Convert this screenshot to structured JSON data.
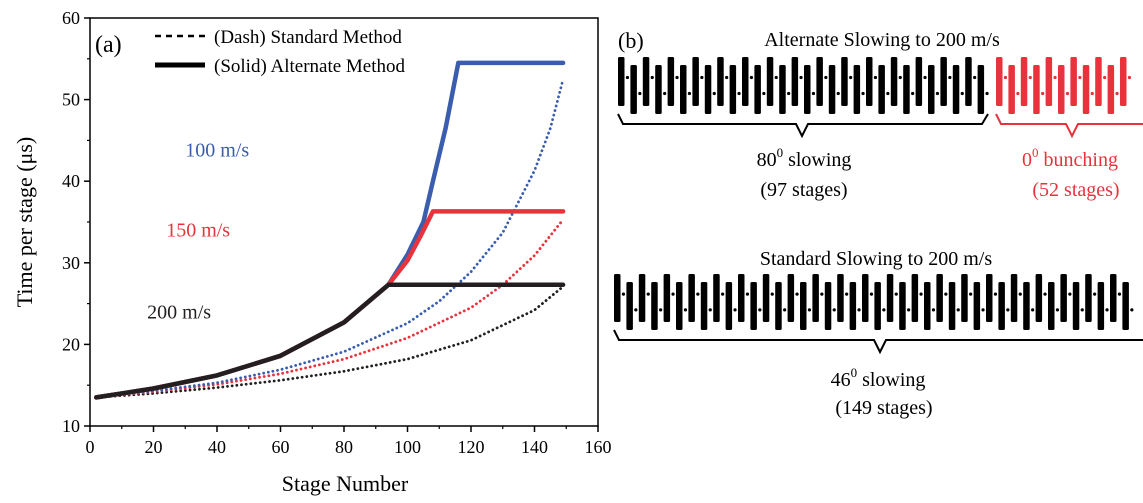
{
  "panel_a": {
    "label": "(a)",
    "legend": {
      "dash": "(Dash) Standard Method",
      "solid": "(Solid) Alternate Method"
    },
    "annotations": [
      {
        "text": "100 m/s",
        "x": 30,
        "y": 43,
        "color": "#3a5dae"
      },
      {
        "text": "150 m/s",
        "x": 24,
        "y": 33.2,
        "color": "#e8323c"
      },
      {
        "text": "200 m/s",
        "x": 18,
        "y": 23.2,
        "color": "#231f20"
      }
    ]
  },
  "chart_data": {
    "type": "line",
    "title": "",
    "xlabel": "Stage Number",
    "ylabel": "Time per stage (μs)",
    "xlim": [
      0,
      160
    ],
    "ylim": [
      10,
      60
    ],
    "xticks": [
      0,
      20,
      40,
      60,
      80,
      100,
      120,
      140,
      160
    ],
    "yticks": [
      10,
      20,
      30,
      40,
      50,
      60
    ],
    "grid": false,
    "legend_position": "top-left",
    "series": [
      {
        "name": "100 m/s",
        "method": "alternate",
        "style": "solid",
        "color": "#3a5dae",
        "x": [
          2,
          20,
          40,
          60,
          80,
          94,
          100,
          105,
          108,
          112,
          116,
          149
        ],
        "y": [
          13.5,
          14.6,
          16.2,
          18.6,
          22.7,
          27.3,
          31,
          35,
          40,
          46.5,
          54.5,
          54.5
        ]
      },
      {
        "name": "150 m/s",
        "method": "alternate",
        "style": "solid",
        "color": "#e8323c",
        "x": [
          2,
          20,
          40,
          60,
          80,
          94,
          100,
          104,
          108,
          149
        ],
        "y": [
          13.5,
          14.6,
          16.2,
          18.6,
          22.7,
          27.3,
          30.3,
          33.2,
          36.3,
          36.3
        ]
      },
      {
        "name": "200 m/s",
        "method": "alternate",
        "style": "solid",
        "color": "#231f20",
        "x": [
          2,
          20,
          40,
          60,
          80,
          94,
          149
        ],
        "y": [
          13.5,
          14.6,
          16.2,
          18.6,
          22.7,
          27.3,
          27.3
        ]
      },
      {
        "name": "100 m/s",
        "method": "standard",
        "style": "dash",
        "color": "#3a5dae",
        "x": [
          2,
          20,
          40,
          60,
          80,
          100,
          110,
          120,
          130,
          140,
          145,
          149
        ],
        "y": [
          13.5,
          14.3,
          15.3,
          16.9,
          19.1,
          22.6,
          25.3,
          28.9,
          33.7,
          41.3,
          46.5,
          52.5
        ]
      },
      {
        "name": "150 m/s",
        "method": "standard",
        "style": "dash",
        "color": "#e8323c",
        "x": [
          2,
          20,
          40,
          60,
          80,
          100,
          120,
          130,
          140,
          149
        ],
        "y": [
          13.5,
          14.2,
          15.1,
          16.4,
          18.2,
          20.8,
          24.5,
          27.3,
          30.9,
          35.3
        ]
      },
      {
        "name": "200 m/s",
        "method": "standard",
        "style": "dash",
        "color": "#231f20",
        "x": [
          2,
          20,
          40,
          60,
          80,
          100,
          120,
          140,
          149
        ],
        "y": [
          13.5,
          14.0,
          14.7,
          15.6,
          16.7,
          18.2,
          20.5,
          24.2,
          27.1
        ]
      }
    ]
  },
  "panel_b": {
    "label": "(b)",
    "top": {
      "title": "Alternate Slowing to 200 m/s",
      "slowing_label": "80",
      "slowing_sup": "0",
      "slowing_word": " slowing",
      "slowing_stages": "(97 stages)",
      "bunching_label": "0",
      "bunching_sup": "0",
      "bunching_word": " bunching",
      "bunching_stages": "(52 stages)",
      "slowing_color": "#000000",
      "bunching_color": "#e8323c"
    },
    "bottom": {
      "title": "Standard Slowing to 200 m/s",
      "slowing_label": "46",
      "slowing_sup": "0",
      "slowing_word": " slowing",
      "slowing_stages": "(149 stages)",
      "color": "#000000"
    }
  }
}
